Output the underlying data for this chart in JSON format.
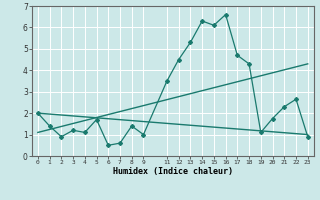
{
  "title": "",
  "xlabel": "Humidex (Indice chaleur)",
  "ylabel": "",
  "background_color": "#cce8e8",
  "grid_color": "#ffffff",
  "line_color": "#1a7a6e",
  "xlim": [
    -0.5,
    23.5
  ],
  "ylim": [
    0,
    7
  ],
  "xtick_positions": [
    0,
    1,
    2,
    3,
    4,
    5,
    6,
    7,
    8,
    9,
    11,
    12,
    13,
    14,
    15,
    16,
    17,
    18,
    19,
    20,
    21,
    22,
    23
  ],
  "xtick_labels": [
    "0",
    "1",
    "2",
    "3",
    "4",
    "5",
    "6",
    "7",
    "8",
    "9",
    "11",
    "12",
    "13",
    "14",
    "15",
    "16",
    "17",
    "18",
    "19",
    "20",
    "21",
    "22",
    "23"
  ],
  "yticks": [
    0,
    1,
    2,
    3,
    4,
    5,
    6,
    7
  ],
  "line1_x": [
    0,
    1,
    2,
    3,
    4,
    5,
    6,
    7,
    8,
    9,
    11,
    12,
    13,
    14,
    15,
    16,
    17,
    18,
    19,
    20,
    21,
    22,
    23
  ],
  "line1_y": [
    2.0,
    1.4,
    0.9,
    1.2,
    1.1,
    1.7,
    0.5,
    0.6,
    1.4,
    1.0,
    3.5,
    4.5,
    5.3,
    6.3,
    6.1,
    6.6,
    4.7,
    4.3,
    1.1,
    1.75,
    2.3,
    2.65,
    0.9
  ],
  "line2_x": [
    0,
    23
  ],
  "line2_y": [
    2.0,
    1.0
  ],
  "line3_x": [
    0,
    23
  ],
  "line3_y": [
    1.1,
    4.3
  ]
}
